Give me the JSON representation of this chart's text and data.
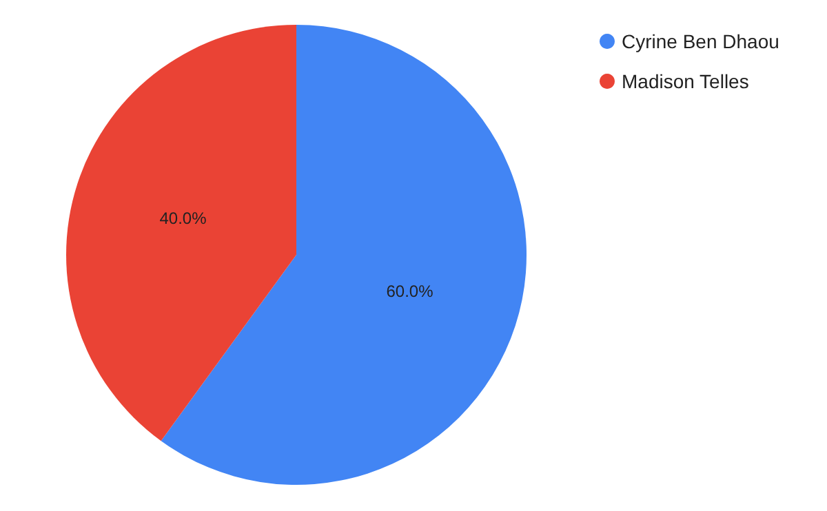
{
  "chart_data": {
    "type": "pie",
    "categories": [
      "Cyrine Ben Dhaou",
      "Madison Telles"
    ],
    "values": [
      60,
      40
    ],
    "colors": [
      "#4285f4",
      "#ea4335"
    ],
    "value_labels": [
      "60.0%",
      "40.0%"
    ],
    "legend": "top right"
  }
}
